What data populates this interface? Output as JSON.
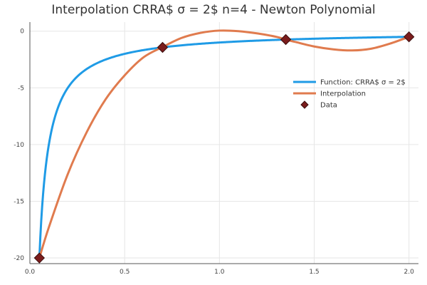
{
  "chart_data": {
    "type": "line",
    "title": "Interpolation CRRA$   σ = 2$ n=4 - Newton Polynomial",
    "xlim": [
      0.0,
      2.05
    ],
    "ylim": [
      -20.5,
      0.8
    ],
    "xticks": [
      0.0,
      0.5,
      1.0,
      1.5,
      2.0
    ],
    "xtick_labels": [
      "0.0",
      "0.5",
      "1.0",
      "1.5",
      "2.0"
    ],
    "yticks": [
      0,
      -5,
      -10,
      -15,
      -20
    ],
    "ytick_labels": [
      "0",
      "-5",
      "-10",
      "-15",
      "-20"
    ],
    "grid": true,
    "legend_position": "right",
    "series": [
      {
        "name": "Function: CRRA$   σ = 2$",
        "kind": "function",
        "formula": "-1/x",
        "x_range": [
          0.05,
          2.0
        ],
        "color": "#1f9be6"
      },
      {
        "name": "Interpolation",
        "kind": "line",
        "color": "#e07b4e",
        "x": [
          0.05,
          0.1,
          0.2,
          0.3,
          0.4,
          0.5,
          0.6,
          0.7,
          0.8,
          0.9,
          1.0,
          1.1,
          1.2,
          1.3,
          1.35,
          1.4,
          1.5,
          1.6,
          1.7,
          1.8,
          1.9,
          2.0
        ],
        "y": [
          -20.0,
          -17.3,
          -12.6,
          -8.9,
          -6.0,
          -3.9,
          -2.3,
          -1.4,
          -0.6,
          -0.15,
          0.05,
          0.0,
          -0.2,
          -0.5,
          -0.74,
          -0.95,
          -1.35,
          -1.6,
          -1.7,
          -1.55,
          -1.1,
          -0.5
        ]
      },
      {
        "name": "Data",
        "kind": "scatter",
        "marker": "diamond",
        "color": "#7b1c1c",
        "x": [
          0.05,
          0.7,
          1.35,
          2.0
        ],
        "y": [
          -20.0,
          -1.43,
          -0.74,
          -0.5
        ]
      }
    ]
  }
}
